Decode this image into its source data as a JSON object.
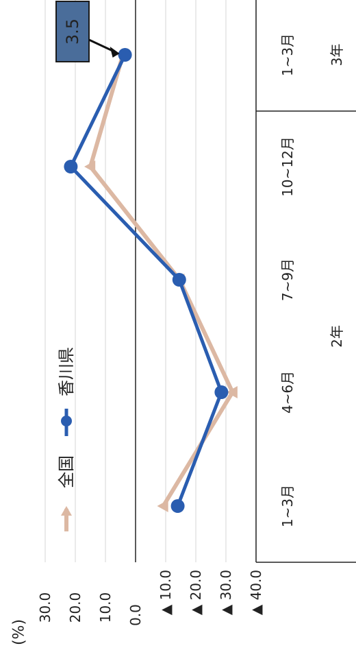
{
  "chart_data": {
    "type": "line",
    "unit_label": "(%)",
    "ylim": [
      -40,
      30
    ],
    "y_ticks": [
      30,
      20,
      10,
      0,
      -10,
      -20,
      -30,
      -40
    ],
    "y_tick_labels": [
      "30.0",
      "20.0",
      "10.0",
      "0.0",
      "▲ 10.0",
      "▲ 20.0",
      "▲ 30.0",
      "▲ 40.0"
    ],
    "categories": [
      "1~3月",
      "4~6月",
      "7~9月",
      "10~12月",
      "1~3月"
    ],
    "year_groups": [
      {
        "label": "2年",
        "span": [
          0,
          3
        ]
      },
      {
        "label": "3年",
        "span": [
          4,
          4
        ]
      }
    ],
    "series": [
      {
        "name": "全国",
        "color": "#dcb8a3",
        "marker": "triangle",
        "values": [
          -9.2,
          -32.2,
          -14.6,
          15.0,
          4.2
        ]
      },
      {
        "name": "香川県",
        "color": "#2a5db0",
        "marker": "circle",
        "values": [
          -14.0,
          -28.5,
          -14.5,
          21.5,
          3.5
        ]
      }
    ],
    "annotation": {
      "text": "3.5",
      "series": "香川県",
      "index": 4,
      "bg": "#4a6d9a"
    },
    "legend_position": "left",
    "grid": true
  }
}
